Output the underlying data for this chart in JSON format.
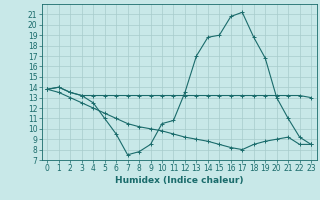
{
  "xlabel": "Humidex (Indice chaleur)",
  "x": [
    0,
    1,
    2,
    3,
    4,
    5,
    6,
    7,
    8,
    9,
    10,
    11,
    12,
    13,
    14,
    15,
    16,
    17,
    18,
    19,
    20,
    21,
    22,
    23
  ],
  "line1": [
    13.8,
    14.0,
    13.5,
    13.2,
    13.2,
    13.2,
    13.2,
    13.2,
    13.2,
    13.2,
    13.2,
    13.2,
    13.2,
    13.2,
    13.2,
    13.2,
    13.2,
    13.2,
    13.2,
    13.2,
    13.2,
    13.2,
    13.2,
    13.0
  ],
  "line2": [
    13.8,
    14.0,
    13.5,
    13.2,
    12.5,
    11.0,
    9.5,
    7.5,
    7.8,
    8.5,
    10.5,
    10.8,
    13.5,
    17.0,
    18.8,
    19.0,
    20.8,
    21.2,
    18.8,
    16.8,
    13.0,
    11.0,
    9.2,
    8.5
  ],
  "line3": [
    13.8,
    13.5,
    13.0,
    12.5,
    12.0,
    11.5,
    11.0,
    10.5,
    10.2,
    10.0,
    9.8,
    9.5,
    9.2,
    9.0,
    8.8,
    8.5,
    8.2,
    8.0,
    8.5,
    8.8,
    9.0,
    9.2,
    8.5,
    8.5
  ],
  "bg_color": "#c8e8e8",
  "line_color": "#1a6b6b",
  "grid_color": "#a8cccc",
  "ylim": [
    7,
    22
  ],
  "yticks": [
    7,
    8,
    9,
    10,
    11,
    12,
    13,
    14,
    15,
    16,
    17,
    18,
    19,
    20,
    21
  ],
  "xlim": [
    -0.5,
    23.5
  ],
  "tick_fontsize": 5.5,
  "xlabel_fontsize": 6.5
}
